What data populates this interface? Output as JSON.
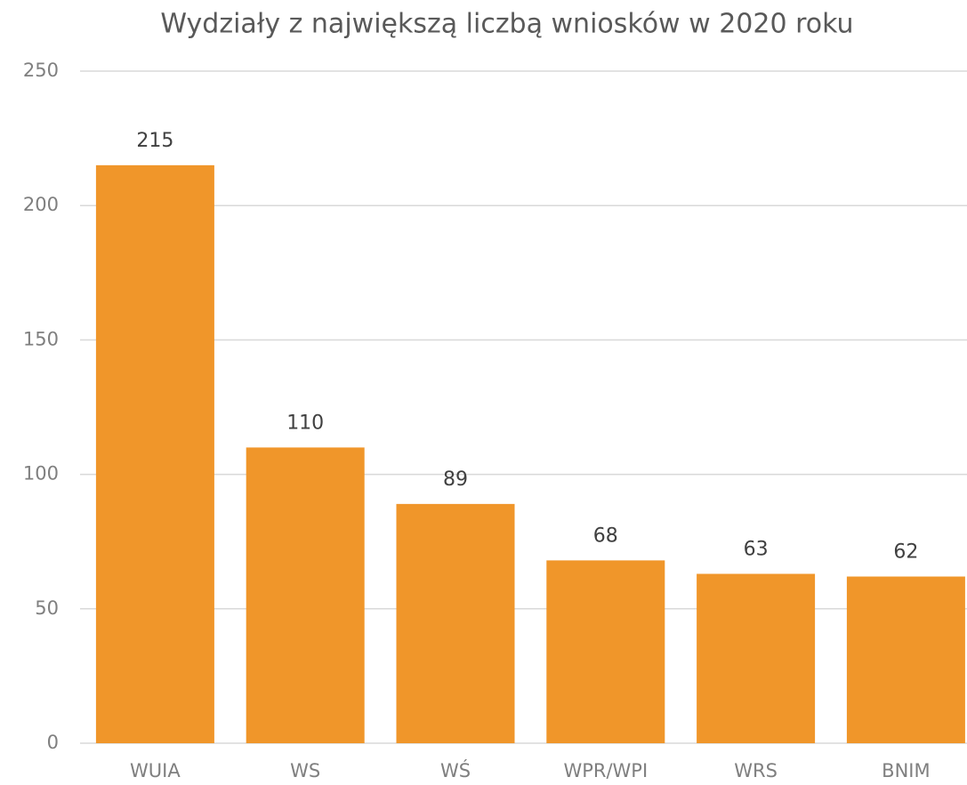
{
  "chart_data": {
    "type": "bar",
    "title": "Wydziały z największą liczbą wniosków w 2020 roku",
    "categories": [
      "WUIA",
      "WS",
      "WŚ",
      "WPR/WPI",
      "WRS",
      "BNIM"
    ],
    "values": [
      215,
      110,
      89,
      68,
      63,
      62
    ],
    "color": "#f0962a",
    "ylim": [
      0,
      250
    ],
    "yticks": [
      0,
      50,
      100,
      150,
      200,
      250
    ],
    "grid": true
  }
}
